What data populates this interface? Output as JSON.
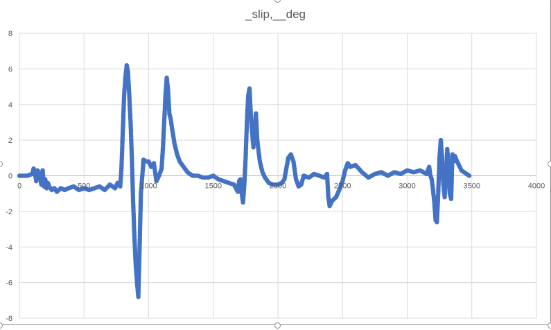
{
  "chart_data": {
    "type": "scatter",
    "title": "_slip,__deg",
    "xlabel": "",
    "ylabel": "",
    "xlim": [
      0,
      4000
    ],
    "ylim": [
      -8,
      8
    ],
    "x_ticks": [
      0,
      500,
      1000,
      1500,
      2000,
      2500,
      3000,
      3500,
      4000
    ],
    "y_ticks": [
      8,
      6,
      4,
      2,
      0,
      -2,
      -4,
      -6,
      -8
    ],
    "grid": true,
    "legend": "none",
    "series_color": "#4472C4",
    "series": [
      {
        "name": "_slip,__deg",
        "x": [
          0,
          60,
          100,
          110,
          120,
          130,
          140,
          150,
          170,
          180,
          190,
          200,
          210,
          220,
          230,
          250,
          270,
          290,
          320,
          350,
          380,
          420,
          460,
          500,
          540,
          580,
          620,
          660,
          700,
          740,
          760,
          780,
          790,
          800,
          810,
          820,
          830,
          840,
          850,
          860,
          870,
          880,
          890,
          900,
          910,
          920,
          930,
          940,
          960,
          980,
          1000,
          1020,
          1040,
          1060,
          1080,
          1100,
          1110,
          1120,
          1130,
          1140,
          1150,
          1160,
          1170,
          1180,
          1200,
          1220,
          1240,
          1270,
          1300,
          1340,
          1380,
          1420,
          1460,
          1500,
          1540,
          1580,
          1620,
          1660,
          1690,
          1700,
          1710,
          1720,
          1730,
          1740,
          1750,
          1760,
          1770,
          1780,
          1790,
          1800,
          1810,
          1820,
          1830,
          1840,
          1860,
          1880,
          1900,
          1930,
          1960,
          2000,
          2030,
          2050,
          2060,
          2080,
          2100,
          2120,
          2140,
          2160,
          2180,
          2200,
          2240,
          2280,
          2320,
          2360,
          2380,
          2390,
          2400,
          2420,
          2450,
          2480,
          2500,
          2520,
          2540,
          2560,
          2600,
          2650,
          2700,
          2750,
          2800,
          2850,
          2900,
          2950,
          3000,
          3050,
          3100,
          3150,
          3170,
          3180,
          3190,
          3200,
          3210,
          3220,
          3230,
          3240,
          3250,
          3260,
          3270,
          3280,
          3290,
          3300,
          3310,
          3320,
          3330,
          3340,
          3350,
          3360,
          3370,
          3380,
          3400,
          3420,
          3440,
          3460,
          3480
        ],
        "y": [
          0,
          0,
          0.1,
          0.4,
          0.2,
          -0.3,
          0.3,
          0.2,
          -0.5,
          0.3,
          -0.6,
          -0.2,
          -0.7,
          -0.4,
          -0.6,
          -0.8,
          -0.7,
          -0.9,
          -0.7,
          -0.8,
          -0.7,
          -0.6,
          -0.8,
          -0.7,
          -0.8,
          -0.7,
          -0.6,
          -0.8,
          -0.5,
          -0.7,
          -0.4,
          -0.6,
          0.5,
          2.5,
          4.5,
          5.5,
          6.2,
          5.8,
          4.5,
          3.0,
          1.0,
          -1.5,
          -3.5,
          -5.0,
          -6.0,
          -6.8,
          -4.0,
          -1.0,
          0.9,
          0.8,
          0.8,
          0.5,
          0.7,
          -0.3,
          0.0,
          0.4,
          1.5,
          3.0,
          4.5,
          5.5,
          4.8,
          3.5,
          3.2,
          2.7,
          1.8,
          1.2,
          0.8,
          0.5,
          0.2,
          0.0,
          0.0,
          -0.1,
          -0.1,
          0.0,
          -0.2,
          -0.3,
          -0.4,
          -0.5,
          -0.9,
          -0.3,
          -0.2,
          -1.0,
          -1.5,
          -0.5,
          1.0,
          3.0,
          4.5,
          4.9,
          3.5,
          2.5,
          1.6,
          2.3,
          3.5,
          2.0,
          0.8,
          0.2,
          -0.1,
          -0.4,
          -0.5,
          -0.5,
          -0.4,
          -0.2,
          0.2,
          1.0,
          1.2,
          0.8,
          -0.2,
          -0.6,
          -0.5,
          0.0,
          -0.1,
          0.1,
          0.0,
          -0.1,
          0.1,
          -1.2,
          -1.7,
          -1.4,
          -1.2,
          -0.7,
          -0.3,
          0.3,
          0.7,
          0.5,
          0.6,
          0.2,
          -0.1,
          0.1,
          0.2,
          0.0,
          0.2,
          0.1,
          0.3,
          0.2,
          0.3,
          0.1,
          0.5,
          0.0,
          -0.2,
          -0.8,
          -1.5,
          -2.5,
          -2.6,
          -1.0,
          1.0,
          2.0,
          1.0,
          -0.5,
          -1.2,
          0.0,
          1.5,
          0.5,
          -1.0,
          -1.3,
          1.2,
          0.8,
          1.1,
          0.9,
          0.6,
          0.3,
          0.2,
          0.1,
          0.0
        ]
      }
    ]
  }
}
